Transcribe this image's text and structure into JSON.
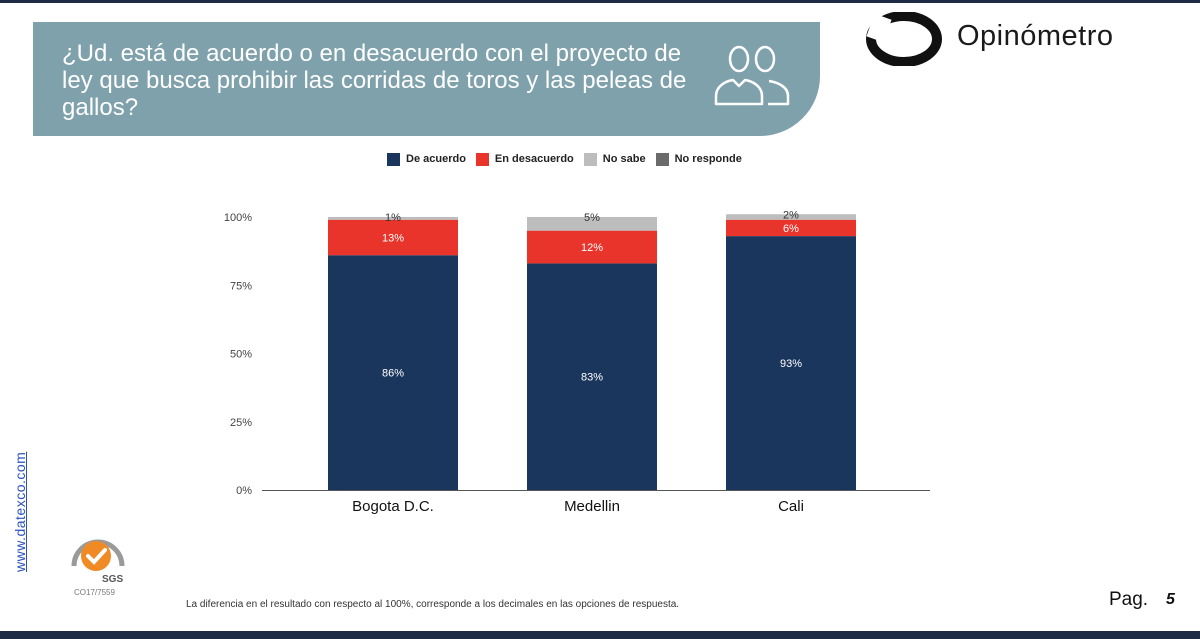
{
  "header": {
    "question": "¿Ud. está de acuerdo o en desacuerdo con el proyecto de ley que busca prohibir las corridas de toros y las peleas de gallos?",
    "people_icon": "people-group-icon",
    "brand_logo_icon": "opinometro-o-logo-icon",
    "brand_name": "Opinómetro"
  },
  "legend": [
    {
      "label": "De acuerdo",
      "color": "#1b365d"
    },
    {
      "label": "En desacuerdo",
      "color": "#e8342a"
    },
    {
      "label": "No sabe",
      "color": "#bdbdbd"
    },
    {
      "label": "No responde",
      "color": "#6b6b6b"
    }
  ],
  "chart_data": {
    "type": "bar",
    "stacked": true,
    "categories": [
      "Bogota D.C.",
      "Medellin",
      "Cali"
    ],
    "series": [
      {
        "name": "De acuerdo",
        "color": "#1b365d",
        "values": [
          86,
          83,
          93
        ],
        "labels": [
          "86%",
          "83%",
          "93%"
        ]
      },
      {
        "name": "En desacuerdo",
        "color": "#e8342a",
        "values": [
          13,
          12,
          6
        ],
        "labels": [
          "13%",
          "12%",
          "6%"
        ]
      },
      {
        "name": "No sabe",
        "color": "#bdbdbd",
        "values": [
          1,
          5,
          2
        ],
        "labels": [
          "1%",
          "5%",
          "2%"
        ]
      },
      {
        "name": "No responde",
        "color": "#6b6b6b",
        "values": [
          0,
          0,
          0
        ],
        "labels": [
          "",
          "",
          ""
        ]
      }
    ],
    "yticks": [
      "100%",
      "75%",
      "50%",
      "25%",
      "0%"
    ],
    "ylim": [
      0,
      100
    ],
    "grid": false,
    "legend_position": "top"
  },
  "side_link": "www.datexco.com",
  "certification": {
    "icon": "sgs-certification-badge-icon",
    "code": "CO17/7559"
  },
  "footnote": "La diferencia en el resultado con respecto al 100%, corresponde a los decimales en las opciones de respuesta.",
  "page": {
    "label": "Pag.",
    "number": "5"
  }
}
